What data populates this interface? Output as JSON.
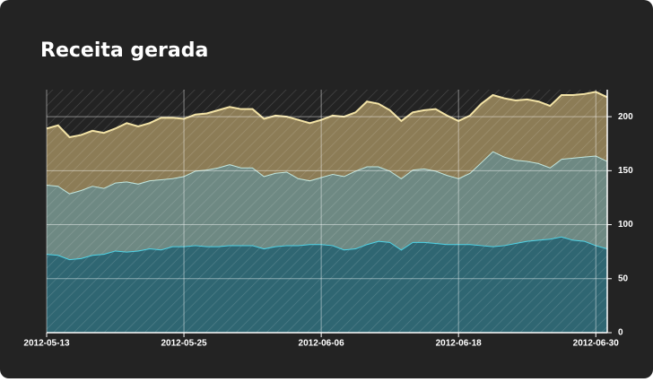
{
  "chart_data": {
    "type": "stacked_area",
    "title": "Receita gerada",
    "x": [
      "2012-05-13",
      "2012-05-14",
      "2012-05-15",
      "2012-05-16",
      "2012-05-17",
      "2012-05-18",
      "2012-05-19",
      "2012-05-20",
      "2012-05-21",
      "2012-05-22",
      "2012-05-23",
      "2012-05-24",
      "2012-05-25",
      "2012-05-26",
      "2012-05-27",
      "2012-05-28",
      "2012-05-29",
      "2012-05-30",
      "2012-05-31",
      "2012-06-01",
      "2012-06-02",
      "2012-06-03",
      "2012-06-04",
      "2012-06-05",
      "2012-06-06",
      "2012-06-07",
      "2012-06-08",
      "2012-06-09",
      "2012-06-10",
      "2012-06-11",
      "2012-06-12",
      "2012-06-13",
      "2012-06-14",
      "2012-06-15",
      "2012-06-16",
      "2012-06-17",
      "2012-06-18",
      "2012-06-19",
      "2012-06-20",
      "2012-06-21",
      "2012-06-22",
      "2012-06-23",
      "2012-06-24",
      "2012-06-25",
      "2012-06-26",
      "2012-06-27",
      "2012-06-28",
      "2012-06-29",
      "2012-06-30",
      "2012-07-01"
    ],
    "series": [
      {
        "color": "#2f6672",
        "line_color": "#4fd3e6",
        "values": [
          73,
          72,
          68,
          69,
          72,
          73,
          76,
          75,
          76,
          78,
          77,
          80,
          80,
          81,
          80,
          80,
          81,
          81,
          81,
          78,
          80,
          81,
          81,
          82,
          82,
          81,
          77,
          78,
          82,
          85,
          84,
          77,
          84,
          84,
          83,
          82,
          82,
          82,
          81,
          80,
          81,
          83,
          85,
          86,
          87,
          89,
          86,
          85,
          81,
          78
        ]
      },
      {
        "color": "#6e8983",
        "line_color": "#c2e6de",
        "values": [
          64,
          64,
          61,
          63,
          64,
          61,
          63,
          65,
          62,
          63,
          65,
          63,
          65,
          69,
          71,
          73,
          75,
          72,
          72,
          67,
          68,
          68,
          62,
          59,
          62,
          66,
          68,
          72,
          72,
          69,
          66,
          66,
          67,
          68,
          67,
          64,
          61,
          66,
          77,
          88,
          82,
          77,
          74,
          71,
          66,
          72,
          76,
          78,
          83,
          81
        ]
      },
      {
        "color": "#8c7c56",
        "line_color": "#f3e3a6",
        "values": [
          52,
          56,
          52,
          51,
          51,
          51,
          50,
          54,
          53,
          53,
          57,
          56,
          53,
          52,
          52,
          53,
          53,
          54,
          54,
          53,
          53,
          51,
          54,
          53,
          53,
          54,
          55,
          54,
          60,
          58,
          56,
          53,
          53,
          54,
          57,
          55,
          53,
          53,
          54,
          52,
          54,
          55,
          57,
          57,
          57,
          59,
          58,
          58,
          59,
          59
        ]
      }
    ],
    "xlim": [
      "2012-05-13",
      "2012-07-01"
    ],
    "xticks": [
      "2012-05-13",
      "2012-05-25",
      "2012-06-06",
      "2012-06-18",
      "2012-06-30"
    ],
    "ylim": [
      0,
      225
    ],
    "yticks": [
      0,
      50,
      100,
      150,
      200
    ],
    "grid": true,
    "background": "#232323"
  }
}
